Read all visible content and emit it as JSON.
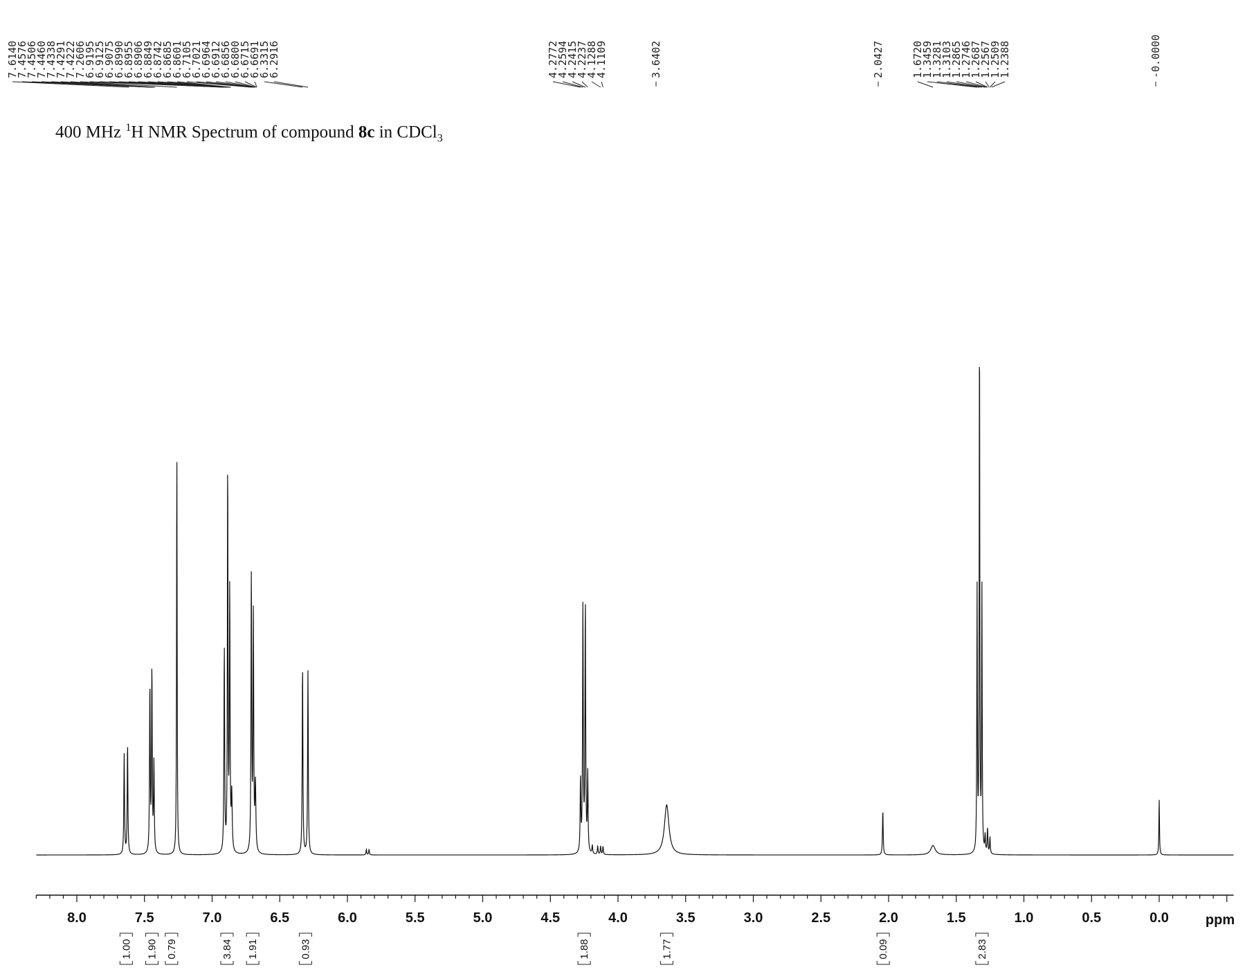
{
  "title": {
    "prefix": "400 MHz ",
    "sup": "1",
    "mid": "H NMR Spectrum of compound ",
    "bold": "8c",
    "suffix": " in CDCl",
    "sub": "3"
  },
  "chart_data": {
    "type": "line",
    "xlabel": "ppm",
    "xlim": [
      8.3,
      -0.55
    ],
    "x_reversed": true,
    "xticks": [
      "8.0",
      "7.5",
      "7.0",
      "6.5",
      "6.0",
      "5.5",
      "5.0",
      "4.5",
      "4.0",
      "3.5",
      "3.0",
      "2.5",
      "2.0",
      "1.5",
      "1.0",
      "0.5",
      "0.0"
    ],
    "peak_label_groups": [
      {
        "labels": [
          "7.6140",
          "7.4576",
          "7.4506",
          "7.4460",
          "7.4338",
          "7.4291",
          "7.4222",
          "7.2606",
          "6.9195",
          "6.9125",
          "6.9075",
          "6.8990",
          "6.8955",
          "6.8906",
          "6.8849",
          "6.8742",
          "6.8685",
          "6.8601",
          "6.7105",
          "6.7021",
          "6.6964",
          "6.6912",
          "6.6856",
          "6.6800",
          "6.6715",
          "6.6691",
          "6.3315",
          "6.2916"
        ]
      },
      {
        "labels": [
          "4.2772",
          "4.2594",
          "4.2415",
          "4.2237",
          "4.1288",
          "4.1109"
        ]
      },
      {
        "labels": [
          "3.6402"
        ]
      },
      {
        "labels": [
          "2.0427"
        ]
      },
      {
        "labels": [
          "1.6720",
          "1.3459",
          "1.3281",
          "1.3103",
          "1.2865",
          "1.2746",
          "1.2687",
          "1.2567",
          "1.2509",
          "1.2388"
        ]
      },
      {
        "labels": [
          "-0.0000"
        ]
      }
    ],
    "peaks": [
      {
        "ppm": 7.65,
        "h": 0.18,
        "w": 0.003
      },
      {
        "ppm": 7.625,
        "h": 0.2,
        "w": 0.003
      },
      {
        "ppm": 7.46,
        "h": 0.3,
        "w": 0.003
      },
      {
        "ppm": 7.445,
        "h": 0.33,
        "w": 0.003
      },
      {
        "ppm": 7.43,
        "h": 0.16,
        "w": 0.003
      },
      {
        "ppm": 7.2606,
        "h": 0.73,
        "w": 0.0025
      },
      {
        "ppm": 6.91,
        "h": 0.37,
        "w": 0.003
      },
      {
        "ppm": 6.885,
        "h": 0.71,
        "w": 0.0025
      },
      {
        "ppm": 6.87,
        "h": 0.47,
        "w": 0.003
      },
      {
        "ppm": 6.855,
        "h": 0.1,
        "w": 0.004
      },
      {
        "ppm": 6.71,
        "h": 0.5,
        "w": 0.003
      },
      {
        "ppm": 6.695,
        "h": 0.42,
        "w": 0.003
      },
      {
        "ppm": 6.68,
        "h": 0.12,
        "w": 0.004
      },
      {
        "ppm": 6.3315,
        "h": 0.34,
        "w": 0.003
      },
      {
        "ppm": 6.2916,
        "h": 0.33,
        "w": 0.003
      },
      {
        "ppm": 5.86,
        "h": 0.01,
        "w": 0.003
      },
      {
        "ppm": 5.84,
        "h": 0.01,
        "w": 0.003
      },
      {
        "ppm": 4.2772,
        "h": 0.13,
        "w": 0.003
      },
      {
        "ppm": 4.2594,
        "h": 0.44,
        "w": 0.003
      },
      {
        "ppm": 4.2415,
        "h": 0.45,
        "w": 0.003
      },
      {
        "ppm": 4.2237,
        "h": 0.14,
        "w": 0.003
      },
      {
        "ppm": 4.19,
        "h": 0.015,
        "w": 0.003
      },
      {
        "ppm": 4.15,
        "h": 0.015,
        "w": 0.003
      },
      {
        "ppm": 4.1288,
        "h": 0.015,
        "w": 0.003
      },
      {
        "ppm": 4.1109,
        "h": 0.015,
        "w": 0.003
      },
      {
        "ppm": 3.6402,
        "h": 0.09,
        "w": 0.02
      },
      {
        "ppm": 2.0427,
        "h": 0.08,
        "w": 0.003
      },
      {
        "ppm": 1.672,
        "h": 0.017,
        "w": 0.02
      },
      {
        "ppm": 1.3459,
        "h": 0.47,
        "w": 0.0025
      },
      {
        "ppm": 1.3281,
        "h": 0.95,
        "w": 0.0025
      },
      {
        "ppm": 1.3103,
        "h": 0.47,
        "w": 0.0025
      },
      {
        "ppm": 1.2865,
        "h": 0.03,
        "w": 0.003
      },
      {
        "ppm": 1.2687,
        "h": 0.045,
        "w": 0.003
      },
      {
        "ppm": 1.2509,
        "h": 0.03,
        "w": 0.003
      },
      {
        "ppm": 0.0,
        "h": 0.1,
        "w": 0.0025
      }
    ],
    "integrals": [
      {
        "ppm": 7.635,
        "value": "1.00"
      },
      {
        "ppm": 7.445,
        "value": "1.90"
      },
      {
        "ppm": 7.3,
        "value": "0.79"
      },
      {
        "ppm": 6.89,
        "value": "3.84"
      },
      {
        "ppm": 6.7,
        "value": "1.91"
      },
      {
        "ppm": 6.31,
        "value": "0.93"
      },
      {
        "ppm": 4.25,
        "value": "1.88"
      },
      {
        "ppm": 3.64,
        "value": "1.77"
      },
      {
        "ppm": 2.04,
        "value": "0.09"
      },
      {
        "ppm": 1.31,
        "value": "2.83"
      }
    ]
  }
}
